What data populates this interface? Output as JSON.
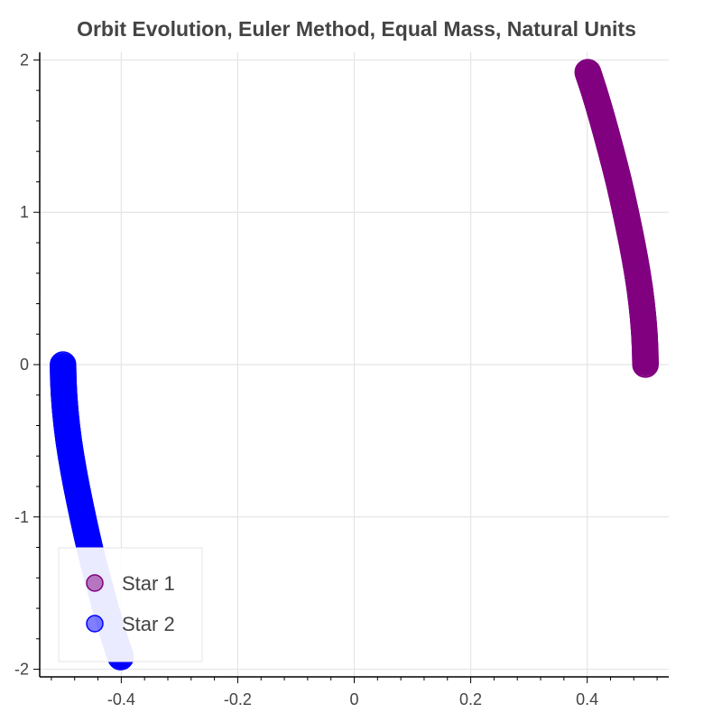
{
  "chart_data": {
    "type": "scatter",
    "title": "Orbit Evolution, Euler Method, Equal Mass, Natural Units",
    "xlabel": "",
    "ylabel": "",
    "xlim": [
      -0.54,
      0.54
    ],
    "ylim": [
      -2.05,
      2.05
    ],
    "x_ticks": [
      -0.4,
      -0.2,
      0,
      0.2,
      0.4
    ],
    "x_tick_labels": [
      "-0.4",
      "-0.2",
      "0",
      "0.2",
      "0.4"
    ],
    "y_ticks": [
      -2,
      -1,
      0,
      1,
      2
    ],
    "y_tick_labels": [
      "-2",
      "-1",
      "0",
      "1",
      "2"
    ],
    "grid": true,
    "legend_position": "bottom-left",
    "series": [
      {
        "name": "Star 1",
        "color": "#800080",
        "marker": "circle",
        "points": [
          [
            0.5,
            0.0
          ],
          [
            0.4995,
            0.1
          ],
          [
            0.4982,
            0.2
          ],
          [
            0.4962,
            0.3
          ],
          [
            0.4935,
            0.4
          ],
          [
            0.4902,
            0.5
          ],
          [
            0.4862,
            0.6
          ],
          [
            0.4817,
            0.7
          ],
          [
            0.4768,
            0.8
          ],
          [
            0.4715,
            0.9
          ],
          [
            0.466,
            1.0
          ],
          [
            0.4603,
            1.1
          ],
          [
            0.4543,
            1.2
          ],
          [
            0.4478,
            1.3
          ],
          [
            0.441,
            1.4
          ],
          [
            0.434,
            1.5
          ],
          [
            0.4268,
            1.6
          ],
          [
            0.4193,
            1.7
          ],
          [
            0.4114,
            1.8
          ],
          [
            0.4045,
            1.88
          ],
          [
            0.401,
            1.92
          ]
        ]
      },
      {
        "name": "Star 2",
        "color": "#0000ff",
        "marker": "circle",
        "points": [
          [
            -0.5,
            0.0
          ],
          [
            -0.4995,
            -0.1
          ],
          [
            -0.4982,
            -0.2
          ],
          [
            -0.4962,
            -0.3
          ],
          [
            -0.4935,
            -0.4
          ],
          [
            -0.4902,
            -0.5
          ],
          [
            -0.4862,
            -0.6
          ],
          [
            -0.4817,
            -0.7
          ],
          [
            -0.4768,
            -0.8
          ],
          [
            -0.4715,
            -0.9
          ],
          [
            -0.466,
            -1.0
          ],
          [
            -0.4603,
            -1.1
          ],
          [
            -0.4543,
            -1.2
          ],
          [
            -0.4478,
            -1.3
          ],
          [
            -0.441,
            -1.4
          ],
          [
            -0.434,
            -1.5
          ],
          [
            -0.4268,
            -1.6
          ],
          [
            -0.4193,
            -1.7
          ],
          [
            -0.4114,
            -1.8
          ],
          [
            -0.4045,
            -1.88
          ],
          [
            -0.401,
            -1.92
          ]
        ]
      }
    ]
  }
}
